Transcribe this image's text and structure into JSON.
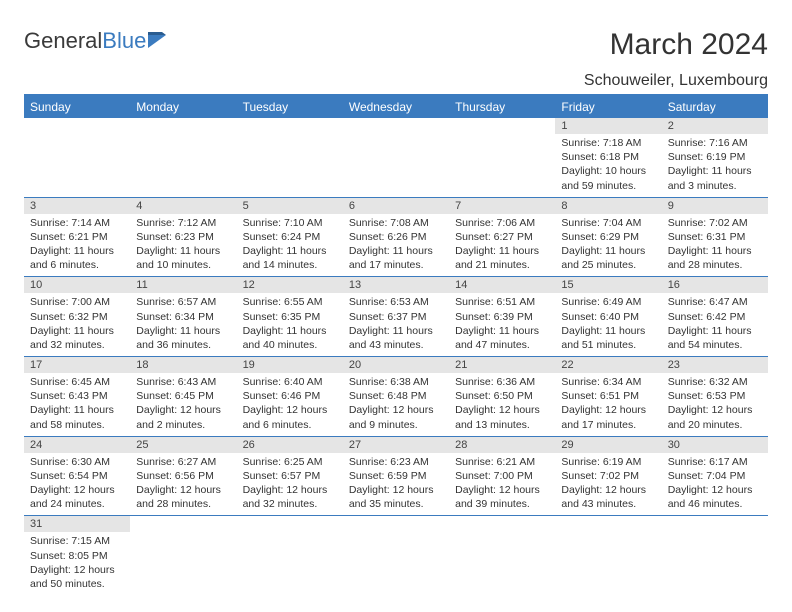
{
  "logo": {
    "text1": "General",
    "text2": "Blue"
  },
  "title": "March 2024",
  "location": "Schouweiler, Luxembourg",
  "colors": {
    "accent": "#3b7bbf",
    "daynum_bg": "#e5e5e5",
    "text": "#333333",
    "bg": "#ffffff"
  },
  "headers": [
    "Sunday",
    "Monday",
    "Tuesday",
    "Wednesday",
    "Thursday",
    "Friday",
    "Saturday"
  ],
  "weeks": [
    [
      {
        "n": "",
        "l1": "",
        "l2": "",
        "l3": "",
        "l4": ""
      },
      {
        "n": "",
        "l1": "",
        "l2": "",
        "l3": "",
        "l4": ""
      },
      {
        "n": "",
        "l1": "",
        "l2": "",
        "l3": "",
        "l4": ""
      },
      {
        "n": "",
        "l1": "",
        "l2": "",
        "l3": "",
        "l4": ""
      },
      {
        "n": "",
        "l1": "",
        "l2": "",
        "l3": "",
        "l4": ""
      },
      {
        "n": "1",
        "l1": "Sunrise: 7:18 AM",
        "l2": "Sunset: 6:18 PM",
        "l3": "Daylight: 10 hours",
        "l4": "and 59 minutes."
      },
      {
        "n": "2",
        "l1": "Sunrise: 7:16 AM",
        "l2": "Sunset: 6:19 PM",
        "l3": "Daylight: 11 hours",
        "l4": "and 3 minutes."
      }
    ],
    [
      {
        "n": "3",
        "l1": "Sunrise: 7:14 AM",
        "l2": "Sunset: 6:21 PM",
        "l3": "Daylight: 11 hours",
        "l4": "and 6 minutes."
      },
      {
        "n": "4",
        "l1": "Sunrise: 7:12 AM",
        "l2": "Sunset: 6:23 PM",
        "l3": "Daylight: 11 hours",
        "l4": "and 10 minutes."
      },
      {
        "n": "5",
        "l1": "Sunrise: 7:10 AM",
        "l2": "Sunset: 6:24 PM",
        "l3": "Daylight: 11 hours",
        "l4": "and 14 minutes."
      },
      {
        "n": "6",
        "l1": "Sunrise: 7:08 AM",
        "l2": "Sunset: 6:26 PM",
        "l3": "Daylight: 11 hours",
        "l4": "and 17 minutes."
      },
      {
        "n": "7",
        "l1": "Sunrise: 7:06 AM",
        "l2": "Sunset: 6:27 PM",
        "l3": "Daylight: 11 hours",
        "l4": "and 21 minutes."
      },
      {
        "n": "8",
        "l1": "Sunrise: 7:04 AM",
        "l2": "Sunset: 6:29 PM",
        "l3": "Daylight: 11 hours",
        "l4": "and 25 minutes."
      },
      {
        "n": "9",
        "l1": "Sunrise: 7:02 AM",
        "l2": "Sunset: 6:31 PM",
        "l3": "Daylight: 11 hours",
        "l4": "and 28 minutes."
      }
    ],
    [
      {
        "n": "10",
        "l1": "Sunrise: 7:00 AM",
        "l2": "Sunset: 6:32 PM",
        "l3": "Daylight: 11 hours",
        "l4": "and 32 minutes."
      },
      {
        "n": "11",
        "l1": "Sunrise: 6:57 AM",
        "l2": "Sunset: 6:34 PM",
        "l3": "Daylight: 11 hours",
        "l4": "and 36 minutes."
      },
      {
        "n": "12",
        "l1": "Sunrise: 6:55 AM",
        "l2": "Sunset: 6:35 PM",
        "l3": "Daylight: 11 hours",
        "l4": "and 40 minutes."
      },
      {
        "n": "13",
        "l1": "Sunrise: 6:53 AM",
        "l2": "Sunset: 6:37 PM",
        "l3": "Daylight: 11 hours",
        "l4": "and 43 minutes."
      },
      {
        "n": "14",
        "l1": "Sunrise: 6:51 AM",
        "l2": "Sunset: 6:39 PM",
        "l3": "Daylight: 11 hours",
        "l4": "and 47 minutes."
      },
      {
        "n": "15",
        "l1": "Sunrise: 6:49 AM",
        "l2": "Sunset: 6:40 PM",
        "l3": "Daylight: 11 hours",
        "l4": "and 51 minutes."
      },
      {
        "n": "16",
        "l1": "Sunrise: 6:47 AM",
        "l2": "Sunset: 6:42 PM",
        "l3": "Daylight: 11 hours",
        "l4": "and 54 minutes."
      }
    ],
    [
      {
        "n": "17",
        "l1": "Sunrise: 6:45 AM",
        "l2": "Sunset: 6:43 PM",
        "l3": "Daylight: 11 hours",
        "l4": "and 58 minutes."
      },
      {
        "n": "18",
        "l1": "Sunrise: 6:43 AM",
        "l2": "Sunset: 6:45 PM",
        "l3": "Daylight: 12 hours",
        "l4": "and 2 minutes."
      },
      {
        "n": "19",
        "l1": "Sunrise: 6:40 AM",
        "l2": "Sunset: 6:46 PM",
        "l3": "Daylight: 12 hours",
        "l4": "and 6 minutes."
      },
      {
        "n": "20",
        "l1": "Sunrise: 6:38 AM",
        "l2": "Sunset: 6:48 PM",
        "l3": "Daylight: 12 hours",
        "l4": "and 9 minutes."
      },
      {
        "n": "21",
        "l1": "Sunrise: 6:36 AM",
        "l2": "Sunset: 6:50 PM",
        "l3": "Daylight: 12 hours",
        "l4": "and 13 minutes."
      },
      {
        "n": "22",
        "l1": "Sunrise: 6:34 AM",
        "l2": "Sunset: 6:51 PM",
        "l3": "Daylight: 12 hours",
        "l4": "and 17 minutes."
      },
      {
        "n": "23",
        "l1": "Sunrise: 6:32 AM",
        "l2": "Sunset: 6:53 PM",
        "l3": "Daylight: 12 hours",
        "l4": "and 20 minutes."
      }
    ],
    [
      {
        "n": "24",
        "l1": "Sunrise: 6:30 AM",
        "l2": "Sunset: 6:54 PM",
        "l3": "Daylight: 12 hours",
        "l4": "and 24 minutes."
      },
      {
        "n": "25",
        "l1": "Sunrise: 6:27 AM",
        "l2": "Sunset: 6:56 PM",
        "l3": "Daylight: 12 hours",
        "l4": "and 28 minutes."
      },
      {
        "n": "26",
        "l1": "Sunrise: 6:25 AM",
        "l2": "Sunset: 6:57 PM",
        "l3": "Daylight: 12 hours",
        "l4": "and 32 minutes."
      },
      {
        "n": "27",
        "l1": "Sunrise: 6:23 AM",
        "l2": "Sunset: 6:59 PM",
        "l3": "Daylight: 12 hours",
        "l4": "and 35 minutes."
      },
      {
        "n": "28",
        "l1": "Sunrise: 6:21 AM",
        "l2": "Sunset: 7:00 PM",
        "l3": "Daylight: 12 hours",
        "l4": "and 39 minutes."
      },
      {
        "n": "29",
        "l1": "Sunrise: 6:19 AM",
        "l2": "Sunset: 7:02 PM",
        "l3": "Daylight: 12 hours",
        "l4": "and 43 minutes."
      },
      {
        "n": "30",
        "l1": "Sunrise: 6:17 AM",
        "l2": "Sunset: 7:04 PM",
        "l3": "Daylight: 12 hours",
        "l4": "and 46 minutes."
      }
    ],
    [
      {
        "n": "31",
        "l1": "Sunrise: 7:15 AM",
        "l2": "Sunset: 8:05 PM",
        "l3": "Daylight: 12 hours",
        "l4": "and 50 minutes."
      },
      {
        "n": "",
        "l1": "",
        "l2": "",
        "l3": "",
        "l4": ""
      },
      {
        "n": "",
        "l1": "",
        "l2": "",
        "l3": "",
        "l4": ""
      },
      {
        "n": "",
        "l1": "",
        "l2": "",
        "l3": "",
        "l4": ""
      },
      {
        "n": "",
        "l1": "",
        "l2": "",
        "l3": "",
        "l4": ""
      },
      {
        "n": "",
        "l1": "",
        "l2": "",
        "l3": "",
        "l4": ""
      },
      {
        "n": "",
        "l1": "",
        "l2": "",
        "l3": "",
        "l4": ""
      }
    ]
  ]
}
